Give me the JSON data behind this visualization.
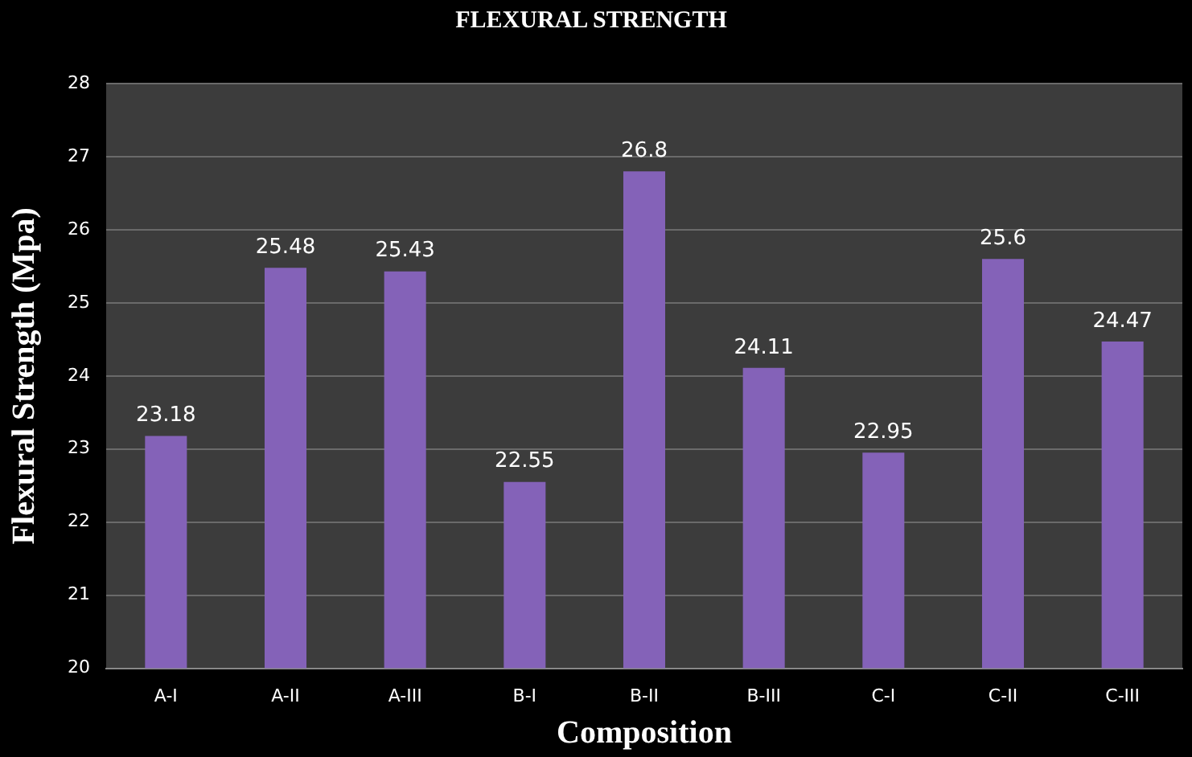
{
  "chart_data": {
    "type": "bar",
    "title": "FLEXURAL STRENGTH",
    "xlabel": "Composition",
    "ylabel": "Flexural Strength (Mpa)",
    "categories": [
      "A-I",
      "A-II",
      "A-III",
      "B-I",
      "B-II",
      "B-III",
      "C-I",
      "C-II",
      "C-III"
    ],
    "values": [
      23.18,
      25.48,
      25.43,
      22.55,
      26.8,
      24.11,
      22.95,
      25.6,
      24.47
    ],
    "color": "#8462b8",
    "ylim": [
      20,
      28
    ],
    "yticks": [
      20,
      21,
      22,
      23,
      24,
      25,
      26,
      27,
      28
    ],
    "grid": "y",
    "data_labels": true
  }
}
